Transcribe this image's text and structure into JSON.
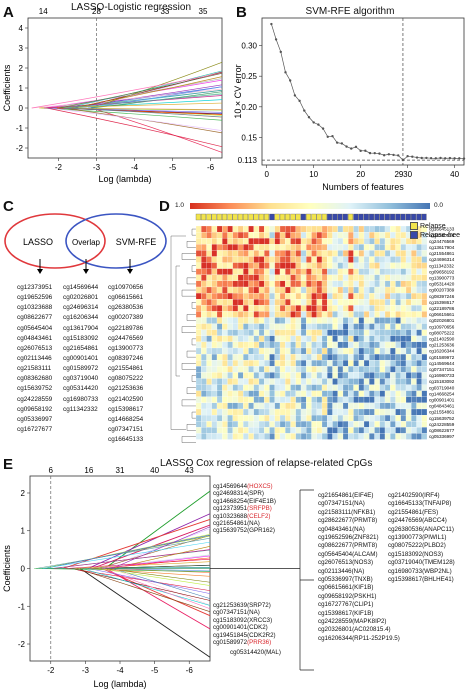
{
  "panelA": {
    "label": "A",
    "title": "LASSO-Logistic regression",
    "xlabel": "Log (lambda)",
    "ylabel": "Coefficients",
    "top_ticks": [
      "14",
      "28",
      "33",
      "35"
    ],
    "x_ticks": [
      "-2",
      "-3",
      "-4",
      "-5",
      "-6"
    ],
    "y_ticks": [
      "4",
      "3",
      "2",
      "1",
      "0",
      "-1",
      "-2"
    ]
  },
  "panelB": {
    "label": "B",
    "title": "SVM-RFE algorithm",
    "xlabel": "Numbers of features",
    "ylabel": "10 × CV error",
    "x_ticks": [
      "0",
      "10",
      "20",
      "30",
      "40"
    ],
    "x_mark": "29",
    "y_ticks": [
      "0.30",
      "0.25",
      "0.20",
      "0.15"
    ],
    "y_min_label": "0.113"
  },
  "panelC": {
    "label": "C",
    "venn_left": "LASSO",
    "venn_mid": "Overlap",
    "venn_right": "SVM-RFE",
    "lasso": [
      "cg12373951",
      "cg19652596",
      "cg10323688",
      "cg08622677",
      "cg05645404",
      "cg04843461",
      "cg26076513",
      "cg02113446",
      "cg21583111",
      "cg08362680",
      "cg15639752",
      "cg24228559",
      "cg09658192",
      "cg05336997",
      "cg16727677"
    ],
    "overlap": [
      "cg14569644",
      "cg02026801",
      "cg24696314",
      "cg16206344",
      "cg13617904",
      "cg15183092",
      "cg21654861",
      "cg00901401",
      "cg01589972",
      "cg03719040",
      "cg05314420",
      "cg16980733",
      "cg11342332"
    ],
    "svm": [
      "cg10970656",
      "cg06615661",
      "cg26380536",
      "cg00207389",
      "cg22189786",
      "cg24476569",
      "cg13900773",
      "cg08397246",
      "cg21554861",
      "cg08075222",
      "cg21253636",
      "cg21402590",
      "cg15398617",
      "cg14668254",
      "cg07347151",
      "cg16645133"
    ]
  },
  "panelD": {
    "label": "D",
    "scale_max": "1.0",
    "scale_min": "0.0",
    "legend": [
      {
        "label": "Relapse",
        "color": "#f1e44c"
      },
      {
        "label": "Relapse-free",
        "color": "#3848a8"
      }
    ],
    "colors": {
      "high": "#d7301f",
      "mid": "#fef5c4",
      "low": "#3a74b8"
    },
    "rows": [
      "cg16645133",
      "cg26380536",
      "cg24476569",
      "cg13617904",
      "cg21554861",
      "cg24696314",
      "cg11342332",
      "cg09658192",
      "cg13900773",
      "cg05314420",
      "cg00207389",
      "cg08397246",
      "cg15398617",
      "cg22189786",
      "cg06615661",
      "cg02026801",
      "cg10970656",
      "cg08075222",
      "cg21402590",
      "cg21253636",
      "cg16206344",
      "cg01589972",
      "cg14569644",
      "cg07347151",
      "cg16980733",
      "cg15183092",
      "cg03719040",
      "cg14668254",
      "cg00901401",
      "cg04843461",
      "cg21554861",
      "cg15639752",
      "cg24228559",
      "cg08622677",
      "cg05336997"
    ],
    "group_pattern": [
      "R",
      "R",
      "R",
      "R",
      "R",
      "R",
      "R",
      "R",
      "R",
      "R",
      "R",
      "R",
      "R",
      "R",
      "F",
      "R",
      "R",
      "R",
      "R",
      "R",
      "F",
      "R",
      "R",
      "R",
      "R",
      "F",
      "F",
      "F",
      "F",
      "R",
      "F",
      "F",
      "F",
      "F",
      "F",
      "F",
      "F",
      "F",
      "F",
      "F",
      "F",
      "F",
      "F",
      "F"
    ]
  },
  "panelE": {
    "label": "E",
    "title": "LASSO Cox regression of relapse-related CpGs",
    "xlabel": "Log (lambda)",
    "ylabel": "Coefficients",
    "top_ticks": [
      "6",
      "16",
      "31",
      "40",
      "43"
    ],
    "x_ticks": [
      "-2",
      "-3",
      "-4",
      "-5",
      "-6"
    ],
    "y_ticks": [
      "2",
      "1",
      "0",
      "-1",
      "-2"
    ],
    "pos_labels": [
      {
        "id": "cg14569644",
        "gene": "(HOXC5)",
        "red": true
      },
      {
        "id": "cg24698314",
        "gene": "(SPR)",
        "red": false
      },
      {
        "id": "cg14668254",
        "gene": "(EIF4E1B)",
        "red": false
      },
      {
        "id": "cg12373951",
        "gene": "(SRFPB)",
        "red": true
      },
      {
        "id": "cg10323688",
        "gene": "(CELF2)",
        "red": true
      },
      {
        "id": "cg21654861",
        "gene": "(NA)",
        "red": false
      },
      {
        "id": "cg15639752",
        "gene": "(GPR162)",
        "red": false
      }
    ],
    "neg_labels": [
      {
        "id": "cg21253639",
        "gene": "(SRP72)",
        "red": false
      },
      {
        "id": "cg07347151",
        "gene": "(NA)",
        "red": false
      },
      {
        "id": "cg15183092",
        "gene": "(XRCC3)",
        "red": false
      },
      {
        "id": "cg00901401",
        "gene": "(CDK2)",
        "red": false
      },
      {
        "id": "cg19451845",
        "gene": "(CDK2R2)",
        "red": false
      },
      {
        "id": "cg01589972",
        "gene": "(PRR36)",
        "red": true
      }
    ],
    "bottom_label": "cg05314420(MAL)",
    "list_col1": [
      "cg21654861(EIF4E)",
      "cg07347151(NA)",
      "cg21583111(NFKB1)",
      "cg28622677(PRMT8)",
      "cg04843461(NA)",
      "cg19652596(ZNF821)",
      "cg08622677(PRMT8)",
      "cg05645404(ALCAM)",
      "cg26076513(NOS3)",
      "cg02113446(NA)",
      "cg05336997(TNXB)",
      "cg06615661(KIF1B)",
      "cg09658192(PSKH1)",
      "cg16727767(CLIP1)",
      "cg15398617(KIF1B)",
      "cg24228559(MAPK8IP2)",
      "cg20326801(AC020815.4)",
      "cg16206344(RP11-252P19.5)"
    ],
    "list_col2": [
      "cg21402590(IRF4)",
      "cg16645133(TNFAIP8)",
      "cg21554861(FES)",
      "cg24476569(ABCC4)",
      "cg26380536(ANAPC11)",
      "cg13900773(PIWIL1)",
      "cg08075222(PLBD2)",
      "cg15183092(NOS3)",
      "cg03719040(TMEM128)",
      "cg16980733(WBP2NL)",
      "cg15398617(BHLHE41)"
    ]
  }
}
